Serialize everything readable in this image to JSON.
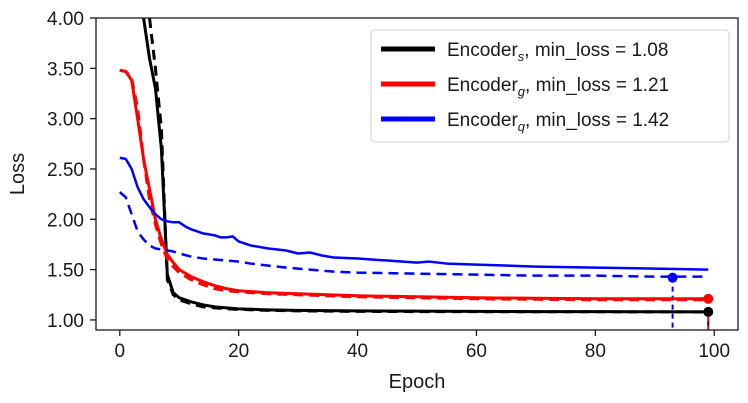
{
  "chart_data": {
    "type": "line",
    "xlabel": "Epoch",
    "ylabel": "Loss",
    "xlim": [
      -4,
      104
    ],
    "ylim": [
      0.9,
      4.0
    ],
    "x_ticks": [
      0,
      20,
      40,
      60,
      80,
      100
    ],
    "x_tick_labels": [
      "0",
      "20",
      "40",
      "60",
      "80",
      "100"
    ],
    "y_ticks": [
      1.0,
      1.5,
      2.0,
      2.5,
      3.0,
      3.5,
      4.0
    ],
    "y_tick_labels": [
      "1.00",
      "1.50",
      "2.00",
      "2.50",
      "3.00",
      "3.50",
      "4.00"
    ],
    "grid": false,
    "legend_position": "top-right",
    "legend": [
      {
        "name_base": "Encoder",
        "name_sub": "s",
        "name_suffix": ", min_loss = 1.08",
        "color": "#000000"
      },
      {
        "name_base": "Encoder",
        "name_sub": "g",
        "name_suffix": ", min_loss = 1.21",
        "color": "#ff0000"
      },
      {
        "name_base": "Encoder",
        "name_sub": "q",
        "name_suffix": ", min_loss = 1.42",
        "color": "#0000ff"
      }
    ],
    "series": [
      {
        "color": "#000000",
        "style": "solid",
        "width": 3,
        "x": [
          4,
          5,
          6,
          7,
          8,
          9,
          10,
          12,
          14,
          16,
          18,
          20,
          25,
          30,
          40,
          50,
          60,
          70,
          80,
          90,
          99
        ],
        "y": [
          4.0,
          3.6,
          3.3,
          2.7,
          1.45,
          1.27,
          1.22,
          1.18,
          1.15,
          1.13,
          1.12,
          1.11,
          1.1,
          1.095,
          1.09,
          1.087,
          1.085,
          1.083,
          1.082,
          1.081,
          1.08
        ]
      },
      {
        "color": "#000000",
        "style": "dashed",
        "width": 3,
        "x": [
          5,
          6,
          7,
          8,
          9,
          10,
          12,
          14,
          16,
          18,
          20,
          25,
          30,
          40,
          50,
          60,
          70,
          80,
          90,
          99
        ],
        "y": [
          4.0,
          3.5,
          2.9,
          1.4,
          1.25,
          1.2,
          1.16,
          1.13,
          1.12,
          1.11,
          1.105,
          1.095,
          1.09,
          1.085,
          1.083,
          1.082,
          1.081,
          1.081,
          1.08,
          1.08
        ]
      },
      {
        "color": "#ff0000",
        "style": "solid",
        "width": 3,
        "x": [
          0,
          1,
          2,
          3,
          4,
          5,
          6,
          7,
          8,
          9,
          10,
          12,
          14,
          16,
          18,
          20,
          25,
          30,
          40,
          50,
          60,
          70,
          80,
          90,
          99
        ],
        "y": [
          3.48,
          3.47,
          3.38,
          3.0,
          2.6,
          2.3,
          2.0,
          1.8,
          1.65,
          1.57,
          1.5,
          1.43,
          1.38,
          1.34,
          1.31,
          1.29,
          1.27,
          1.26,
          1.24,
          1.23,
          1.22,
          1.215,
          1.21,
          1.21,
          1.21
        ]
      },
      {
        "color": "#ff0000",
        "style": "dashed",
        "width": 3,
        "x": [
          0,
          1,
          2,
          3,
          4,
          5,
          6,
          7,
          8,
          9,
          10,
          12,
          14,
          16,
          18,
          20,
          25,
          30,
          40,
          50,
          60,
          70,
          80,
          90,
          99
        ],
        "y": [
          3.48,
          3.47,
          3.4,
          3.1,
          2.6,
          2.2,
          1.95,
          1.75,
          1.6,
          1.53,
          1.47,
          1.4,
          1.35,
          1.31,
          1.29,
          1.28,
          1.26,
          1.25,
          1.23,
          1.22,
          1.21,
          1.205,
          1.2,
          1.2,
          1.2
        ]
      },
      {
        "color": "#0000ff",
        "style": "solid",
        "width": 2.5,
        "x": [
          0,
          1,
          2,
          3,
          4,
          5,
          6,
          7,
          8,
          9,
          10,
          11,
          12,
          13,
          14,
          15,
          16,
          17,
          18,
          19,
          20,
          22,
          25,
          28,
          30,
          32,
          34,
          36,
          40,
          45,
          50,
          52,
          55,
          60,
          70,
          80,
          90,
          99
        ],
        "y": [
          2.61,
          2.6,
          2.5,
          2.32,
          2.2,
          2.12,
          2.05,
          2.0,
          1.98,
          1.97,
          1.97,
          1.93,
          1.9,
          1.88,
          1.86,
          1.85,
          1.84,
          1.82,
          1.82,
          1.83,
          1.78,
          1.74,
          1.71,
          1.69,
          1.66,
          1.67,
          1.64,
          1.62,
          1.61,
          1.59,
          1.57,
          1.58,
          1.56,
          1.55,
          1.53,
          1.52,
          1.51,
          1.5
        ]
      },
      {
        "color": "#0000ff",
        "style": "dashed",
        "width": 2.5,
        "x": [
          0,
          1,
          2,
          3,
          4,
          5,
          6,
          7,
          8,
          9,
          10,
          12,
          14,
          16,
          18,
          20,
          22,
          25,
          28,
          30,
          32,
          34,
          36,
          40,
          50,
          60,
          70,
          80,
          90,
          99
        ],
        "y": [
          2.27,
          2.22,
          2.05,
          1.88,
          1.8,
          1.74,
          1.71,
          1.7,
          1.69,
          1.68,
          1.66,
          1.63,
          1.61,
          1.6,
          1.59,
          1.58,
          1.56,
          1.54,
          1.52,
          1.51,
          1.5,
          1.49,
          1.48,
          1.47,
          1.46,
          1.45,
          1.44,
          1.44,
          1.43,
          1.43
        ]
      }
    ],
    "min_markers": [
      {
        "x": 99,
        "y": 1.08,
        "color": "#000000",
        "drop_line_x": 99
      },
      {
        "x": 99,
        "y": 1.21,
        "color": "#ff0000",
        "drop_line_x": 99
      },
      {
        "x": 93,
        "y": 1.42,
        "color": "#0000ff",
        "drop_line_x": 93
      }
    ]
  }
}
